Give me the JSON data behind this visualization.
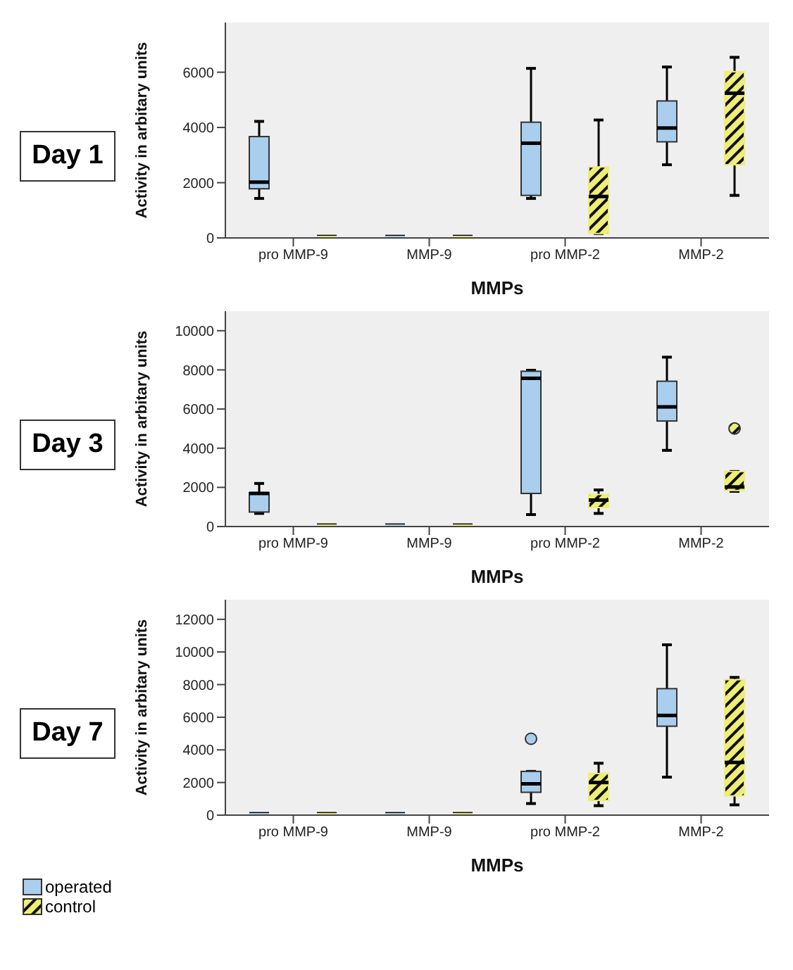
{
  "chart_data": [
    {
      "type": "box",
      "title": "Day 1",
      "xlabel": "MMPs",
      "ylabel": "Activity in arbitary units",
      "categories": [
        "pro MMP-9",
        "MMP-9",
        "pro MMP-2",
        "MMP-2"
      ],
      "ylim": [
        0,
        7800
      ],
      "yticks": [
        0,
        2000,
        4000,
        6000
      ],
      "legend": false,
      "grid": false,
      "series": [
        {
          "color": "#aacfee",
          "boxes": [
            {
              "low": 1430,
              "q1": 1780,
              "median": 2020,
              "q3": 3670,
              "high": 4220
            },
            {
              "low": 0,
              "q1": 0,
              "median": 0,
              "q3": 0,
              "high": 0
            },
            {
              "low": 1430,
              "q1": 1540,
              "median": 3430,
              "q3": 4190,
              "high": 6140
            },
            {
              "low": 2650,
              "q1": 3480,
              "median": 3980,
              "q3": 4960,
              "high": 6190
            }
          ]
        },
        {
          "color": "#eeee77",
          "boxes": [
            {
              "low": 0,
              "q1": 0,
              "median": 0,
              "q3": 0,
              "high": 0
            },
            {
              "low": 0,
              "q1": 0,
              "median": 0,
              "q3": 0,
              "high": 0
            },
            {
              "low": 160,
              "q1": 160,
              "median": 1500,
              "q3": 2570,
              "high": 4270
            },
            {
              "low": 1540,
              "q1": 2650,
              "median": 5240,
              "q3": 6020,
              "high": 6540
            }
          ]
        }
      ]
    },
    {
      "type": "box",
      "title": "Day 3",
      "xlabel": "MMPs",
      "ylabel": "Activity in arbitary units",
      "categories": [
        "pro MMP-9",
        "MMP-9",
        "pro MMP-2",
        "MMP-2"
      ],
      "ylim": [
        0,
        11000
      ],
      "yticks": [
        0,
        2000,
        4000,
        6000,
        8000,
        10000
      ],
      "legend": false,
      "grid": false,
      "series": [
        {
          "color": "#aacfee",
          "boxes": [
            {
              "low": 670,
              "q1": 740,
              "median": 1690,
              "q3": 1730,
              "high": 2200
            },
            {
              "low": 0,
              "q1": 0,
              "median": 0,
              "q3": 0,
              "high": 0
            },
            {
              "low": 610,
              "q1": 1690,
              "median": 7570,
              "q3": 7930,
              "high": 7980
            },
            {
              "low": 3890,
              "q1": 5390,
              "median": 6110,
              "q3": 7420,
              "high": 8650
            }
          ]
        },
        {
          "color": "#eeee77",
          "boxes": [
            {
              "low": 0,
              "q1": 0,
              "median": 0,
              "q3": 0,
              "high": 0
            },
            {
              "low": 0,
              "q1": 0,
              "median": 0,
              "q3": 0,
              "high": 0
            },
            {
              "low": 670,
              "q1": 970,
              "median": 1350,
              "q3": 1640,
              "high": 1870
            },
            {
              "low": 1800,
              "q1": 1840,
              "median": 2020,
              "q3": 2810,
              "high": 2810,
              "outliers": [
                5010
              ]
            }
          ]
        }
      ]
    },
    {
      "type": "box",
      "title": "Day 7",
      "xlabel": "MMPs",
      "ylabel": "Activity in arbitary units",
      "categories": [
        "pro MMP-9",
        "MMP-9",
        "pro MMP-2",
        "MMP-2"
      ],
      "ylim": [
        0,
        13200
      ],
      "yticks": [
        0,
        2000,
        4000,
        6000,
        8000,
        10000,
        12000
      ],
      "legend": "bottom left",
      "grid": false,
      "series": [
        {
          "name": "operated",
          "color": "#aacfee",
          "boxes": [
            {
              "low": 0,
              "q1": 0,
              "median": 0,
              "q3": 0,
              "high": 0
            },
            {
              "low": 0,
              "q1": 0,
              "median": 0,
              "q3": 0,
              "high": 0
            },
            {
              "low": 710,
              "q1": 1400,
              "median": 1920,
              "q3": 2680,
              "high": 2680,
              "outliers": [
                4680
              ]
            },
            {
              "low": 2330,
              "q1": 5450,
              "median": 6110,
              "q3": 7750,
              "high": 10440
            }
          ]
        },
        {
          "name": "control",
          "color": "#eeee77",
          "boxes": [
            {
              "low": 0,
              "q1": 0,
              "median": 0,
              "q3": 0,
              "high": 0
            },
            {
              "low": 0,
              "q1": 0,
              "median": 0,
              "q3": 0,
              "high": 0
            },
            {
              "low": 580,
              "q1": 900,
              "median": 2000,
              "q3": 2550,
              "high": 3180
            },
            {
              "low": 630,
              "q1": 1180,
              "median": 3230,
              "q3": 8300,
              "high": 8440
            }
          ]
        }
      ]
    }
  ]
}
